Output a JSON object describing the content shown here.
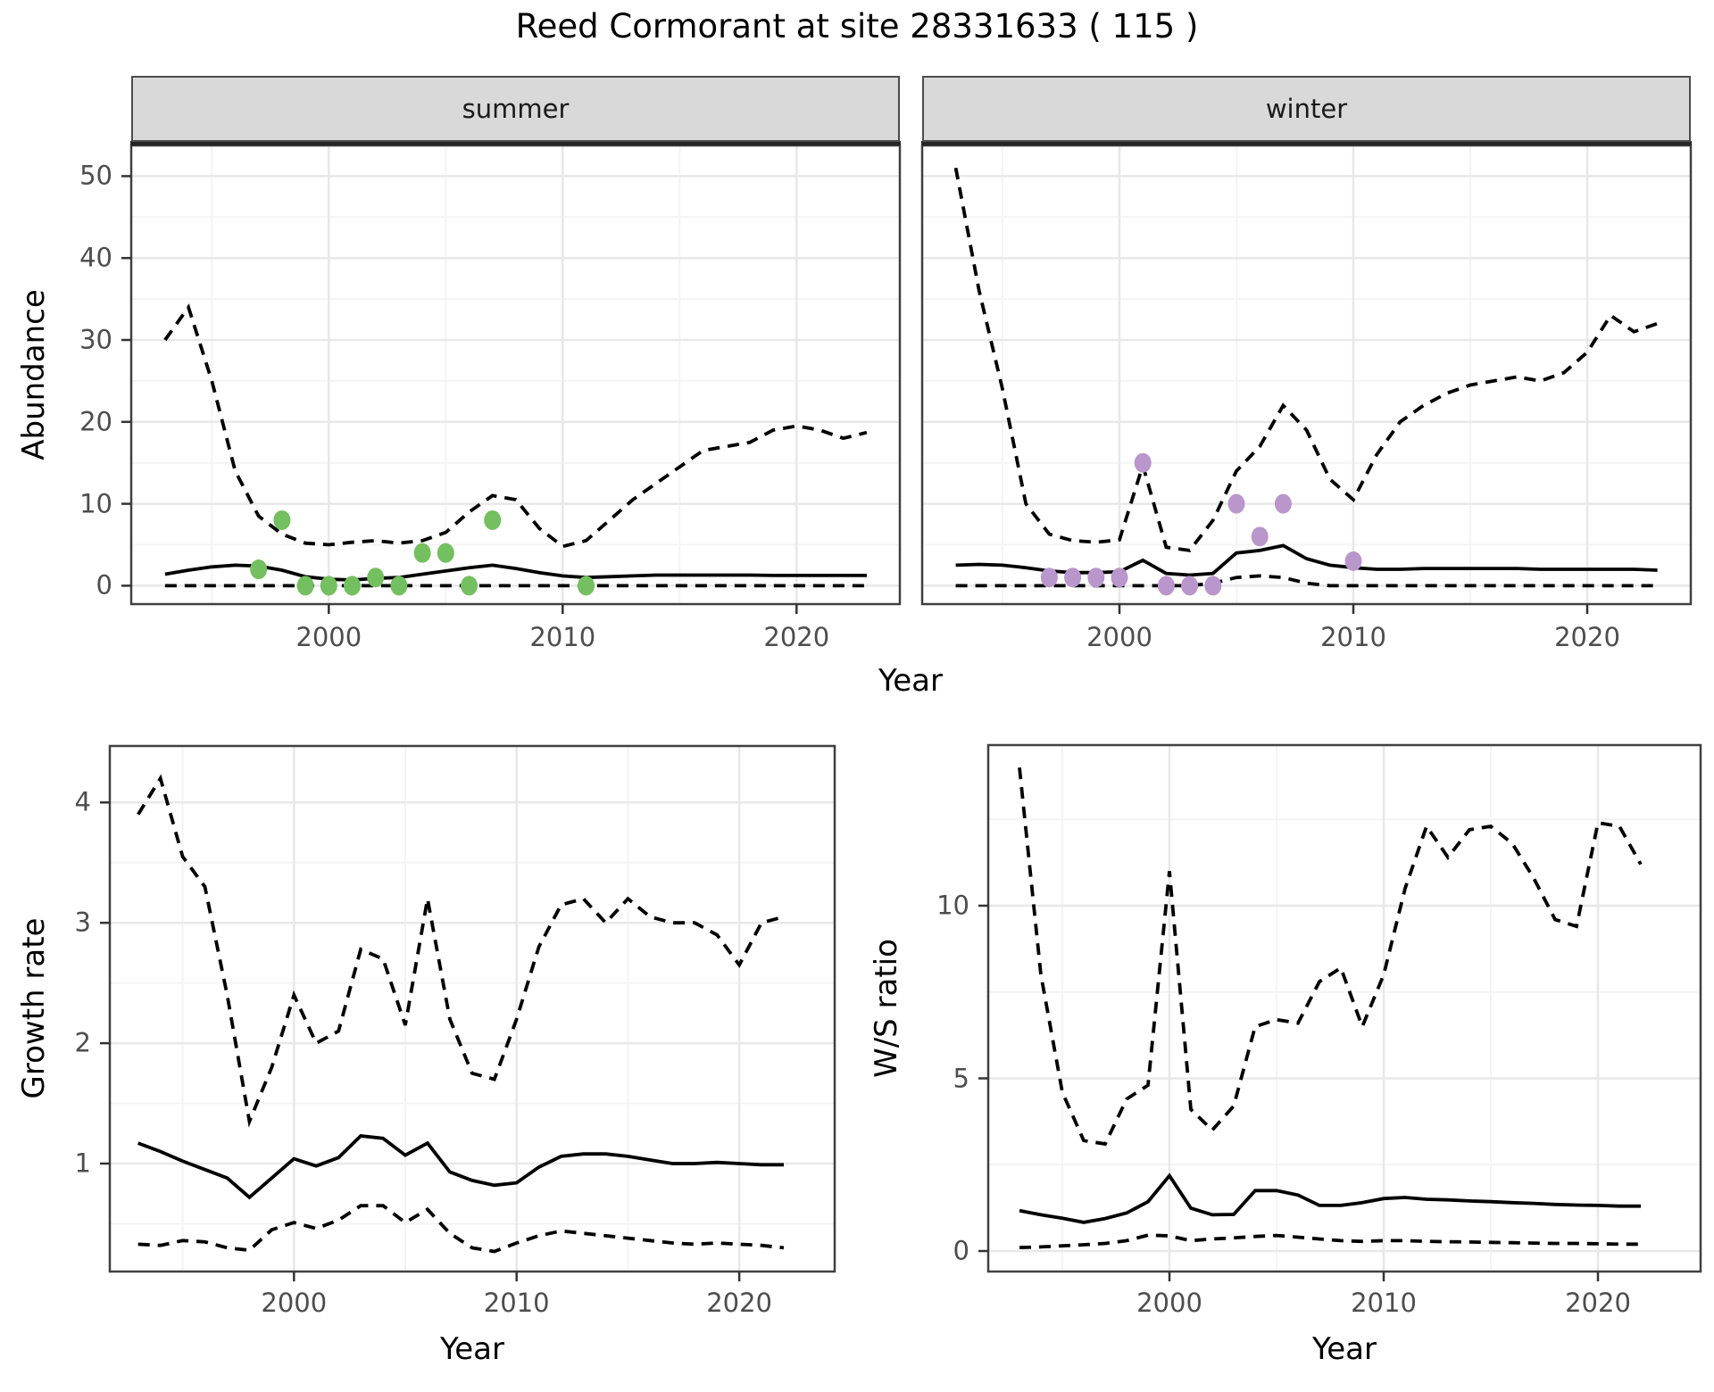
{
  "title": "Reed Cormorant at site 28331633 ( 115 )",
  "facets": {
    "summer_label": "summer",
    "winter_label": "winter"
  },
  "axis_titles": {
    "y_abundance": "Abundance",
    "x_top": "Year",
    "y_growth": "Growth rate",
    "x_bottom_left": "Year",
    "y_ws": "W/S ratio",
    "x_bottom_right": "Year"
  },
  "colors": {
    "summer_points": "#74bf60",
    "winter_points": "#b996cb",
    "line": "#000000",
    "strip_bg": "#d9d9d9",
    "panel_border": "#404040",
    "grid_major": "#e8e8e8",
    "grid_minor": "#f4f4f4",
    "axis_text": "#4d4d4d",
    "tick_mark": "#333333"
  },
  "chart_data": [
    {
      "type": "line",
      "panel": "abundance-summer",
      "facet_label": "summer",
      "xlabel": "Year",
      "ylabel": "Abundance",
      "x_ticks": [
        2000,
        2010,
        2020
      ],
      "x_minor": [
        1995,
        2005,
        2015
      ],
      "y_ticks": [
        0,
        10,
        20,
        30,
        40,
        50
      ],
      "y_minor": [
        5,
        15,
        25,
        35,
        45
      ],
      "xlim": [
        1991.5,
        2024.5
      ],
      "ylim": [
        -2.3,
        53.7
      ],
      "grid": true,
      "x": [
        1993,
        1994,
        1995,
        1996,
        1997,
        1998,
        1999,
        2000,
        2001,
        2002,
        2003,
        2004,
        2005,
        2006,
        2007,
        2008,
        2009,
        2010,
        2011,
        2012,
        2013,
        2014,
        2015,
        2016,
        2017,
        2018,
        2019,
        2020,
        2021,
        2022,
        2023
      ],
      "series": [
        {
          "name": "upper-ci",
          "style": "dashed",
          "values": [
            30,
            34,
            25,
            14,
            8.5,
            6.3,
            5.2,
            5,
            5.3,
            5.5,
            5.2,
            5.5,
            6.5,
            9,
            11,
            10.5,
            7,
            4.8,
            5.5,
            8,
            10.5,
            12.5,
            14.5,
            16.5,
            17,
            17.5,
            19,
            19.5,
            19,
            18,
            18.7
          ]
        },
        {
          "name": "median",
          "style": "solid",
          "values": [
            1.4,
            1.9,
            2.3,
            2.5,
            2.4,
            1.9,
            1.1,
            0.8,
            0.7,
            0.9,
            1,
            1.4,
            1.8,
            2.2,
            2.5,
            2.1,
            1.6,
            1.2,
            1,
            1.1,
            1.2,
            1.3,
            1.3,
            1.3,
            1.3,
            1.3,
            1.25,
            1.25,
            1.25,
            1.25,
            1.25
          ]
        },
        {
          "name": "lower-ci",
          "style": "dashed",
          "values": [
            0,
            0,
            0,
            0,
            0,
            0,
            0,
            0,
            0,
            0,
            0,
            0,
            0,
            0,
            0,
            0,
            0,
            0,
            0,
            0,
            0,
            0,
            0,
            0,
            0,
            0,
            0,
            0,
            0,
            0,
            0
          ]
        }
      ],
      "points": {
        "name": "observed-counts-summer",
        "color": "#74bf60",
        "data": [
          [
            1997,
            2
          ],
          [
            1998,
            8
          ],
          [
            1999,
            0
          ],
          [
            2000,
            0
          ],
          [
            2001,
            0
          ],
          [
            2002,
            1
          ],
          [
            2003,
            0
          ],
          [
            2004,
            4
          ],
          [
            2005,
            4
          ],
          [
            2006,
            0
          ],
          [
            2007,
            8
          ],
          [
            2011,
            0
          ]
        ]
      }
    },
    {
      "type": "line",
      "panel": "abundance-winter",
      "facet_label": "winter",
      "xlabel": "Year",
      "ylabel": "Abundance",
      "x_ticks": [
        2000,
        2010,
        2020
      ],
      "x_minor": [
        1995,
        2005,
        2015
      ],
      "y_ticks": [
        0,
        10,
        20,
        30,
        40,
        50
      ],
      "y_minor": [
        5,
        15,
        25,
        35,
        45
      ],
      "xlim": [
        1991.5,
        2024.5
      ],
      "ylim": [
        -2.3,
        53.7
      ],
      "grid": true,
      "x": [
        1993,
        1994,
        1995,
        1996,
        1997,
        1998,
        1999,
        2000,
        2001,
        2002,
        2003,
        2004,
        2005,
        2006,
        2007,
        2008,
        2009,
        2010,
        2011,
        2012,
        2013,
        2014,
        2015,
        2016,
        2017,
        2018,
        2019,
        2020,
        2021,
        2022,
        2023
      ],
      "series": [
        {
          "name": "upper-ci",
          "style": "dashed",
          "values": [
            51,
            36,
            24,
            10,
            6.3,
            5.5,
            5.3,
            5.6,
            14.7,
            4.7,
            4.3,
            8,
            14,
            17,
            22,
            19,
            13,
            10.5,
            16,
            20,
            22,
            23.5,
            24.5,
            25,
            25.5,
            25,
            26,
            28.5,
            33,
            31,
            32
          ]
        },
        {
          "name": "median",
          "style": "solid",
          "values": [
            2.5,
            2.6,
            2.5,
            2.2,
            1.8,
            1.6,
            1.6,
            1.7,
            3.1,
            1.5,
            1.3,
            1.5,
            4,
            4.3,
            4.9,
            3.3,
            2.5,
            2.2,
            2,
            2,
            2.1,
            2.1,
            2.1,
            2.1,
            2.1,
            2,
            2,
            2,
            2,
            2,
            1.9
          ]
        },
        {
          "name": "lower-ci",
          "style": "dashed",
          "values": [
            0,
            0,
            0,
            0,
            0,
            0,
            0,
            0,
            0,
            0,
            0,
            0.3,
            1,
            1.2,
            1,
            0.3,
            0,
            0,
            0,
            0,
            0,
            0,
            0,
            0,
            0,
            0,
            0,
            0,
            0,
            0,
            0
          ]
        }
      ],
      "points": {
        "name": "observed-counts-winter",
        "color": "#b996cb",
        "data": [
          [
            1997,
            1
          ],
          [
            1998,
            1
          ],
          [
            1999,
            1
          ],
          [
            2000,
            1
          ],
          [
            2001,
            15
          ],
          [
            2002,
            0
          ],
          [
            2003,
            0
          ],
          [
            2004,
            0
          ],
          [
            2005,
            10
          ],
          [
            2006,
            6
          ],
          [
            2007,
            10
          ],
          [
            2010,
            3
          ]
        ]
      }
    },
    {
      "type": "line",
      "panel": "growth-rate",
      "facet_label": "",
      "xlabel": "Year",
      "ylabel": "Growth rate",
      "x_ticks": [
        2000,
        2010,
        2020
      ],
      "x_minor": [
        1995,
        2005,
        2015
      ],
      "y_ticks": [
        1,
        2,
        3,
        4
      ],
      "y_minor": [
        0.5,
        1.5,
        2.5,
        3.5
      ],
      "xlim": [
        1991.7,
        2024.3
      ],
      "ylim": [
        0.1,
        4.47
      ],
      "grid": true,
      "x": [
        1993,
        1994,
        1995,
        1996,
        1997,
        1998,
        1999,
        2000,
        2001,
        2002,
        2003,
        2004,
        2005,
        2006,
        2007,
        2008,
        2009,
        2010,
        2011,
        2012,
        2013,
        2014,
        2015,
        2016,
        2017,
        2018,
        2019,
        2020,
        2021,
        2022
      ],
      "series": [
        {
          "name": "upper-ci",
          "style": "dashed",
          "values": [
            3.9,
            4.2,
            3.55,
            3.3,
            2.4,
            1.35,
            1.8,
            2.4,
            2,
            2.1,
            2.78,
            2.7,
            2.15,
            3.2,
            2.2,
            1.75,
            1.7,
            2.2,
            2.8,
            3.15,
            3.2,
            3,
            3.2,
            3.05,
            3,
            3,
            2.9,
            2.65,
            3,
            3.05
          ]
        },
        {
          "name": "median",
          "style": "solid",
          "values": [
            1.17,
            1.1,
            1.02,
            0.95,
            0.88,
            0.72,
            0.88,
            1.04,
            0.98,
            1.05,
            1.23,
            1.21,
            1.07,
            1.17,
            0.93,
            0.86,
            0.82,
            0.84,
            0.97,
            1.06,
            1.08,
            1.08,
            1.06,
            1.03,
            1,
            1,
            1.01,
            1,
            0.99,
            0.99
          ]
        },
        {
          "name": "lower-ci",
          "style": "dashed",
          "values": [
            0.33,
            0.32,
            0.36,
            0.35,
            0.3,
            0.28,
            0.45,
            0.51,
            0.46,
            0.53,
            0.65,
            0.65,
            0.51,
            0.62,
            0.42,
            0.3,
            0.27,
            0.34,
            0.4,
            0.44,
            0.42,
            0.4,
            0.38,
            0.36,
            0.34,
            0.33,
            0.34,
            0.33,
            0.32,
            0.3
          ]
        }
      ],
      "points": null
    },
    {
      "type": "line",
      "panel": "ws-ratio",
      "facet_label": "",
      "xlabel": "Year",
      "ylabel": "W/S ratio",
      "x_ticks": [
        2000,
        2010,
        2020
      ],
      "x_minor": [
        1995,
        2005,
        2015
      ],
      "y_ticks": [
        0,
        5,
        10
      ],
      "y_minor": [
        2.5,
        7.5,
        12.5
      ],
      "xlim": [
        1991.5,
        2024.8
      ],
      "ylim": [
        -0.6,
        14.6
      ],
      "grid": true,
      "x": [
        1993,
        1994,
        1995,
        1996,
        1997,
        1998,
        1999,
        2000,
        2001,
        2002,
        2003,
        2004,
        2005,
        2006,
        2007,
        2008,
        2009,
        2010,
        2011,
        2012,
        2013,
        2014,
        2015,
        2016,
        2017,
        2018,
        2019,
        2020,
        2021,
        2022
      ],
      "series": [
        {
          "name": "upper-ci",
          "style": "dashed",
          "values": [
            14,
            8,
            4.6,
            3.2,
            3.1,
            4.4,
            4.8,
            11,
            4.1,
            3.5,
            4.2,
            6.5,
            6.7,
            6.6,
            7.8,
            8.2,
            6.5,
            8,
            10.5,
            12.3,
            11.4,
            12.2,
            12.3,
            11.8,
            10.8,
            9.6,
            9.4,
            12.4,
            12.3,
            11.2
          ]
        },
        {
          "name": "median",
          "style": "solid",
          "values": [
            1.17,
            1.05,
            0.95,
            0.83,
            0.94,
            1.1,
            1.43,
            2.18,
            1.24,
            1.05,
            1.06,
            1.75,
            1.75,
            1.62,
            1.32,
            1.32,
            1.4,
            1.52,
            1.55,
            1.5,
            1.48,
            1.45,
            1.43,
            1.4,
            1.38,
            1.35,
            1.33,
            1.32,
            1.3,
            1.3
          ]
        },
        {
          "name": "lower-ci",
          "style": "dashed",
          "values": [
            0.1,
            0.12,
            0.15,
            0.18,
            0.22,
            0.3,
            0.46,
            0.44,
            0.3,
            0.35,
            0.38,
            0.42,
            0.45,
            0.4,
            0.35,
            0.3,
            0.28,
            0.3,
            0.3,
            0.28,
            0.27,
            0.26,
            0.25,
            0.24,
            0.23,
            0.22,
            0.22,
            0.21,
            0.2,
            0.2
          ]
        }
      ],
      "points": null
    }
  ]
}
